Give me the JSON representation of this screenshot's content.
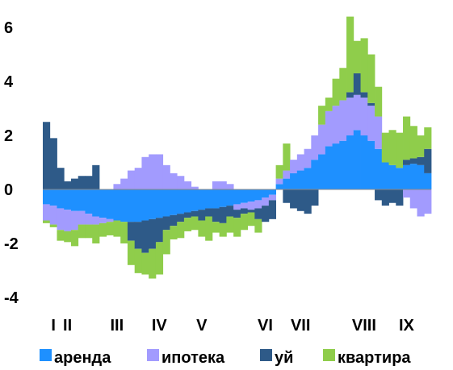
{
  "chart_data": {
    "type": "bar",
    "stacked": true,
    "title": "",
    "xlabel": "",
    "ylabel": "",
    "ylim": [
      -4,
      7
    ],
    "y_ticks": [
      6,
      4,
      2,
      0,
      -2,
      -4
    ],
    "grid": false,
    "legend_position": "bottom",
    "month_labels": [
      {
        "label": "I",
        "bar": 1
      },
      {
        "label": "II",
        "bar": 3
      },
      {
        "label": "III",
        "bar": 10
      },
      {
        "label": "IV",
        "bar": 16
      },
      {
        "label": "V",
        "bar": 22
      },
      {
        "label": "VI",
        "bar": 31
      },
      {
        "label": "VII",
        "bar": 36
      },
      {
        "label": "VIII",
        "bar": 45
      },
      {
        "label": "IX",
        "bar": 51
      }
    ],
    "series": [
      {
        "name": "аренда",
        "color": "#1e90ff",
        "values": [
          -0.55,
          -0.6,
          -0.7,
          -0.75,
          -0.8,
          -0.8,
          -0.9,
          -1.0,
          -1.05,
          -1.1,
          -1.15,
          -1.2,
          -1.2,
          -1.2,
          -1.15,
          -1.1,
          -1.05,
          -1.0,
          -0.95,
          -0.9,
          -0.85,
          -0.8,
          -0.75,
          -0.7,
          -0.7,
          -0.65,
          -0.6,
          -0.55,
          -0.5,
          -0.45,
          -0.4,
          -0.3,
          -0.2,
          0.2,
          0.4,
          0.6,
          0.7,
          0.8,
          1.1,
          1.3,
          1.6,
          1.7,
          1.8,
          2.0,
          2.2,
          2.0,
          1.8,
          1.5,
          1.0,
          0.9,
          0.8,
          0.9,
          0.95,
          0.9,
          0.6
        ]
      },
      {
        "name": "ипотека",
        "color": "#a29bfe",
        "values": [
          -0.6,
          -0.7,
          -0.8,
          -0.8,
          -0.7,
          -0.5,
          -0.4,
          -0.3,
          -0.2,
          -0.1,
          0.2,
          0.4,
          0.7,
          0.8,
          1.2,
          1.3,
          1.3,
          0.9,
          0.6,
          0.5,
          0.3,
          0.1,
          0.0,
          0.0,
          0.3,
          0.3,
          0.2,
          -0.2,
          -0.2,
          -0.3,
          -0.3,
          -0.3,
          -0.2,
          0.2,
          0.3,
          0.5,
          0.6,
          0.7,
          0.9,
          1.1,
          1.3,
          1.4,
          1.5,
          1.4,
          1.3,
          1.4,
          1.3,
          1.2,
          0.0,
          0.0,
          0.0,
          -0.3,
          -0.7,
          -1.0,
          -0.9
        ]
      },
      {
        "name": "уй",
        "color": "#2e5a88",
        "values": [
          2.5,
          1.9,
          0.8,
          0.3,
          0.4,
          0.5,
          0.5,
          0.9,
          0.0,
          0.0,
          0.0,
          0.0,
          -0.7,
          -1.0,
          -1.2,
          -1.1,
          -0.9,
          -0.5,
          -0.4,
          -0.3,
          -0.2,
          -0.2,
          -0.4,
          -0.3,
          -0.5,
          -0.6,
          -0.4,
          -0.3,
          -0.2,
          -0.1,
          -0.4,
          -0.6,
          -0.7,
          0.0,
          -0.5,
          -0.7,
          -0.8,
          -0.9,
          -0.6,
          0.0,
          0.0,
          0.0,
          0.0,
          0.2,
          0.8,
          0.2,
          0.1,
          -0.4,
          -0.6,
          -0.5,
          -0.6,
          0.2,
          0.2,
          0.3,
          0.9
        ]
      },
      {
        "name": "квартира",
        "color": "#8fcd4b",
        "values": [
          -0.1,
          -0.1,
          -0.4,
          -0.4,
          -0.6,
          -0.5,
          -0.5,
          -0.7,
          -0.5,
          -0.5,
          -0.6,
          -0.8,
          -0.9,
          -0.9,
          -0.8,
          -1.1,
          -1.2,
          -0.9,
          -0.5,
          -0.6,
          -0.5,
          -0.5,
          -0.6,
          -0.9,
          -0.4,
          -0.5,
          -0.6,
          -0.7,
          -0.6,
          -0.5,
          -0.5,
          0.0,
          0.0,
          0.5,
          1.0,
          0.0,
          0.0,
          0.0,
          0.0,
          0.7,
          0.5,
          1.0,
          1.2,
          2.8,
          1.2,
          2.0,
          1.8,
          1.1,
          1.1,
          1.3,
          1.3,
          1.6,
          1.2,
          0.8,
          0.8
        ]
      }
    ],
    "legend": [
      "аренда",
      "ипотека",
      "уй",
      "квартира"
    ]
  }
}
